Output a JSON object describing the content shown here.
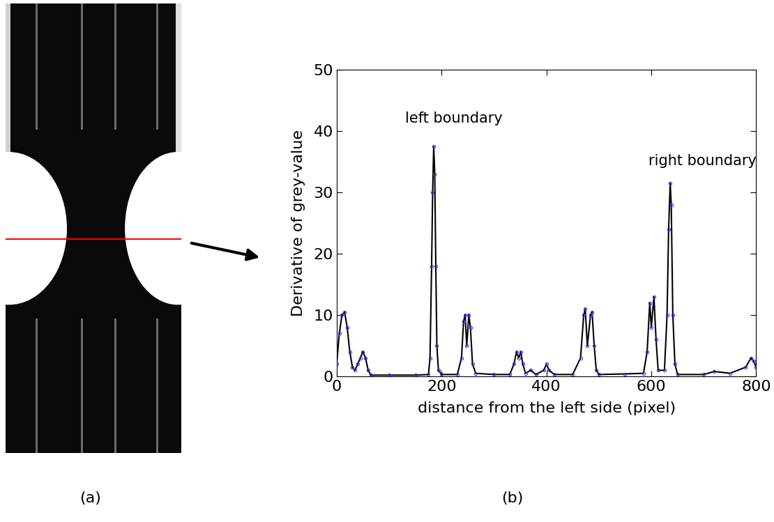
{
  "panels": [
    "(a)",
    "(b)"
  ],
  "chart_data": {
    "type": "line",
    "x_label": "distance from the left side (pixel)",
    "y_label": "Derivative of grey-value",
    "annotations": [
      {
        "text": "left boundary",
        "x": 130,
        "y": 41
      },
      {
        "text": "right boundary",
        "x": 595,
        "y": 34
      }
    ],
    "series": [
      {
        "name": "derivative",
        "color": "#000000",
        "marker": "o",
        "line_style": "solid",
        "x": [
          0,
          5,
          10,
          15,
          20,
          25,
          30,
          35,
          40,
          45,
          50,
          55,
          60,
          65,
          100,
          150,
          175,
          178,
          181,
          183,
          185,
          187,
          189,
          191,
          194,
          200,
          230,
          238,
          242,
          245,
          248,
          252,
          255,
          259,
          265,
          300,
          330,
          338,
          343,
          347,
          351,
          355,
          360,
          370,
          380,
          395,
          400,
          405,
          415,
          450,
          465,
          471,
          474,
          478,
          484,
          487,
          491,
          495,
          500,
          550,
          585,
          592,
          597,
          600,
          605,
          609,
          613,
          625,
          630,
          633,
          636,
          638,
          641,
          645,
          650,
          700,
          720,
          750,
          780,
          790,
          795,
          800
        ],
        "values": [
          2,
          7,
          10,
          10.5,
          8,
          4,
          1.5,
          1,
          2,
          3,
          4,
          3,
          1,
          0.2,
          0.2,
          0.2,
          0.3,
          3,
          18,
          30,
          37.5,
          33,
          18,
          5,
          1,
          0.3,
          0.3,
          3,
          9,
          10,
          5,
          10,
          8,
          2,
          0.5,
          0.3,
          0.3,
          2,
          4,
          3,
          4,
          2,
          0.5,
          1,
          0.3,
          1,
          2,
          1,
          0.3,
          0.3,
          3,
          10,
          11,
          5,
          10,
          10.5,
          5,
          1,
          0.3,
          0.4,
          0.5,
          4,
          12,
          8,
          13,
          6,
          1,
          1,
          10,
          24,
          31.5,
          28,
          10,
          2,
          0.3,
          0.3,
          0.8,
          0.5,
          1.5,
          3,
          2.5,
          1.5
        ]
      }
    ],
    "xlim": [
      0,
      800
    ],
    "xticks": [
      0,
      200,
      400,
      600,
      800
    ],
    "ylim": [
      0,
      50
    ],
    "yticks": [
      0,
      10,
      20,
      30,
      40,
      50
    ]
  }
}
